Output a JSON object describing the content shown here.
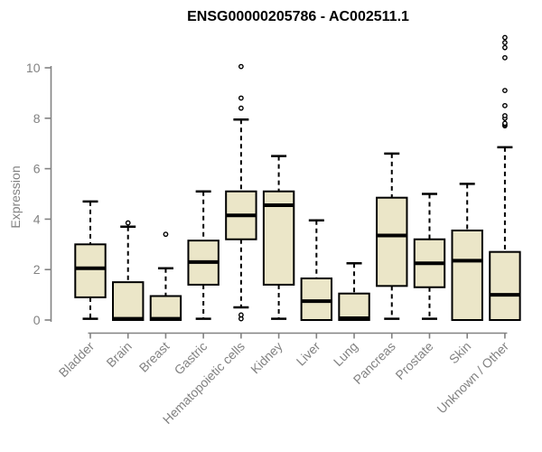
{
  "chart_data": {
    "type": "boxplot",
    "title": "ENSG00000205786 - AC002511.1",
    "ylabel": "Expression",
    "xlabel": "",
    "ylim": [
      0,
      10
    ],
    "yticks": [
      0,
      2,
      4,
      6,
      8,
      10
    ],
    "grid": false,
    "legend_position": "none",
    "categories": [
      "Bladder",
      "Brain",
      "Breast",
      "Gastric",
      "Hematopoietic cells",
      "Kidney",
      "Liver",
      "Lung",
      "Pancreas",
      "Prostate",
      "Skin",
      "Unknown / Other"
    ],
    "stats": [
      {
        "category": "Bladder",
        "whisker_low": 0.05,
        "q1": 0.9,
        "median": 2.05,
        "q3": 3.0,
        "whisker_high": 4.7,
        "outliers": []
      },
      {
        "category": "Brain",
        "whisker_low": 0,
        "q1": 0,
        "median": 0.05,
        "q3": 1.5,
        "whisker_high": 3.7,
        "outliers": [
          3.85
        ]
      },
      {
        "category": "Breast",
        "whisker_low": 0,
        "q1": 0,
        "median": 0.05,
        "q3": 0.95,
        "whisker_high": 2.05,
        "outliers": [
          3.4
        ]
      },
      {
        "category": "Gastric",
        "whisker_low": 0.05,
        "q1": 1.4,
        "median": 2.3,
        "q3": 3.15,
        "whisker_high": 5.1,
        "outliers": []
      },
      {
        "category": "Hematopoietic cells",
        "whisker_low": 0.5,
        "q1": 3.2,
        "median": 4.15,
        "q3": 5.1,
        "whisker_high": 7.95,
        "outliers": [
          0.05,
          0.2,
          8.4,
          8.8,
          10.05
        ]
      },
      {
        "category": "Kidney",
        "whisker_low": 0.05,
        "q1": 1.4,
        "median": 4.55,
        "q3": 5.1,
        "whisker_high": 6.5,
        "outliers": []
      },
      {
        "category": "Liver",
        "whisker_low": 0,
        "q1": 0,
        "median": 0.75,
        "q3": 1.65,
        "whisker_high": 3.95,
        "outliers": []
      },
      {
        "category": "Lung",
        "whisker_low": 0,
        "q1": 0,
        "median": 0.07,
        "q3": 1.05,
        "whisker_high": 2.25,
        "outliers": []
      },
      {
        "category": "Pancreas",
        "whisker_low": 0.05,
        "q1": 1.35,
        "median": 3.35,
        "q3": 4.85,
        "whisker_high": 6.6,
        "outliers": []
      },
      {
        "category": "Prostate",
        "whisker_low": 0.05,
        "q1": 1.3,
        "median": 2.25,
        "q3": 3.2,
        "whisker_high": 5.0,
        "outliers": []
      },
      {
        "category": "Skin",
        "whisker_low": 0,
        "q1": 0,
        "median": 2.35,
        "q3": 3.55,
        "whisker_high": 5.4,
        "outliers": []
      },
      {
        "category": "Unknown / Other",
        "whisker_low": 0,
        "q1": 0,
        "median": 1.0,
        "q3": 2.7,
        "whisker_high": 6.85,
        "outliers": [
          7.7,
          7.75,
          7.8,
          8.0,
          8.1,
          8.5,
          9.1,
          10.4,
          10.8,
          11.0,
          11.2
        ]
      }
    ],
    "colors": {
      "box_fill": "#ebe6c8",
      "box_stroke": "#000000",
      "median": "#000000",
      "whisker": "#000000",
      "axis": "#828282",
      "tick_label": "#828282",
      "title": "#000000",
      "background": "#ffffff"
    }
  }
}
